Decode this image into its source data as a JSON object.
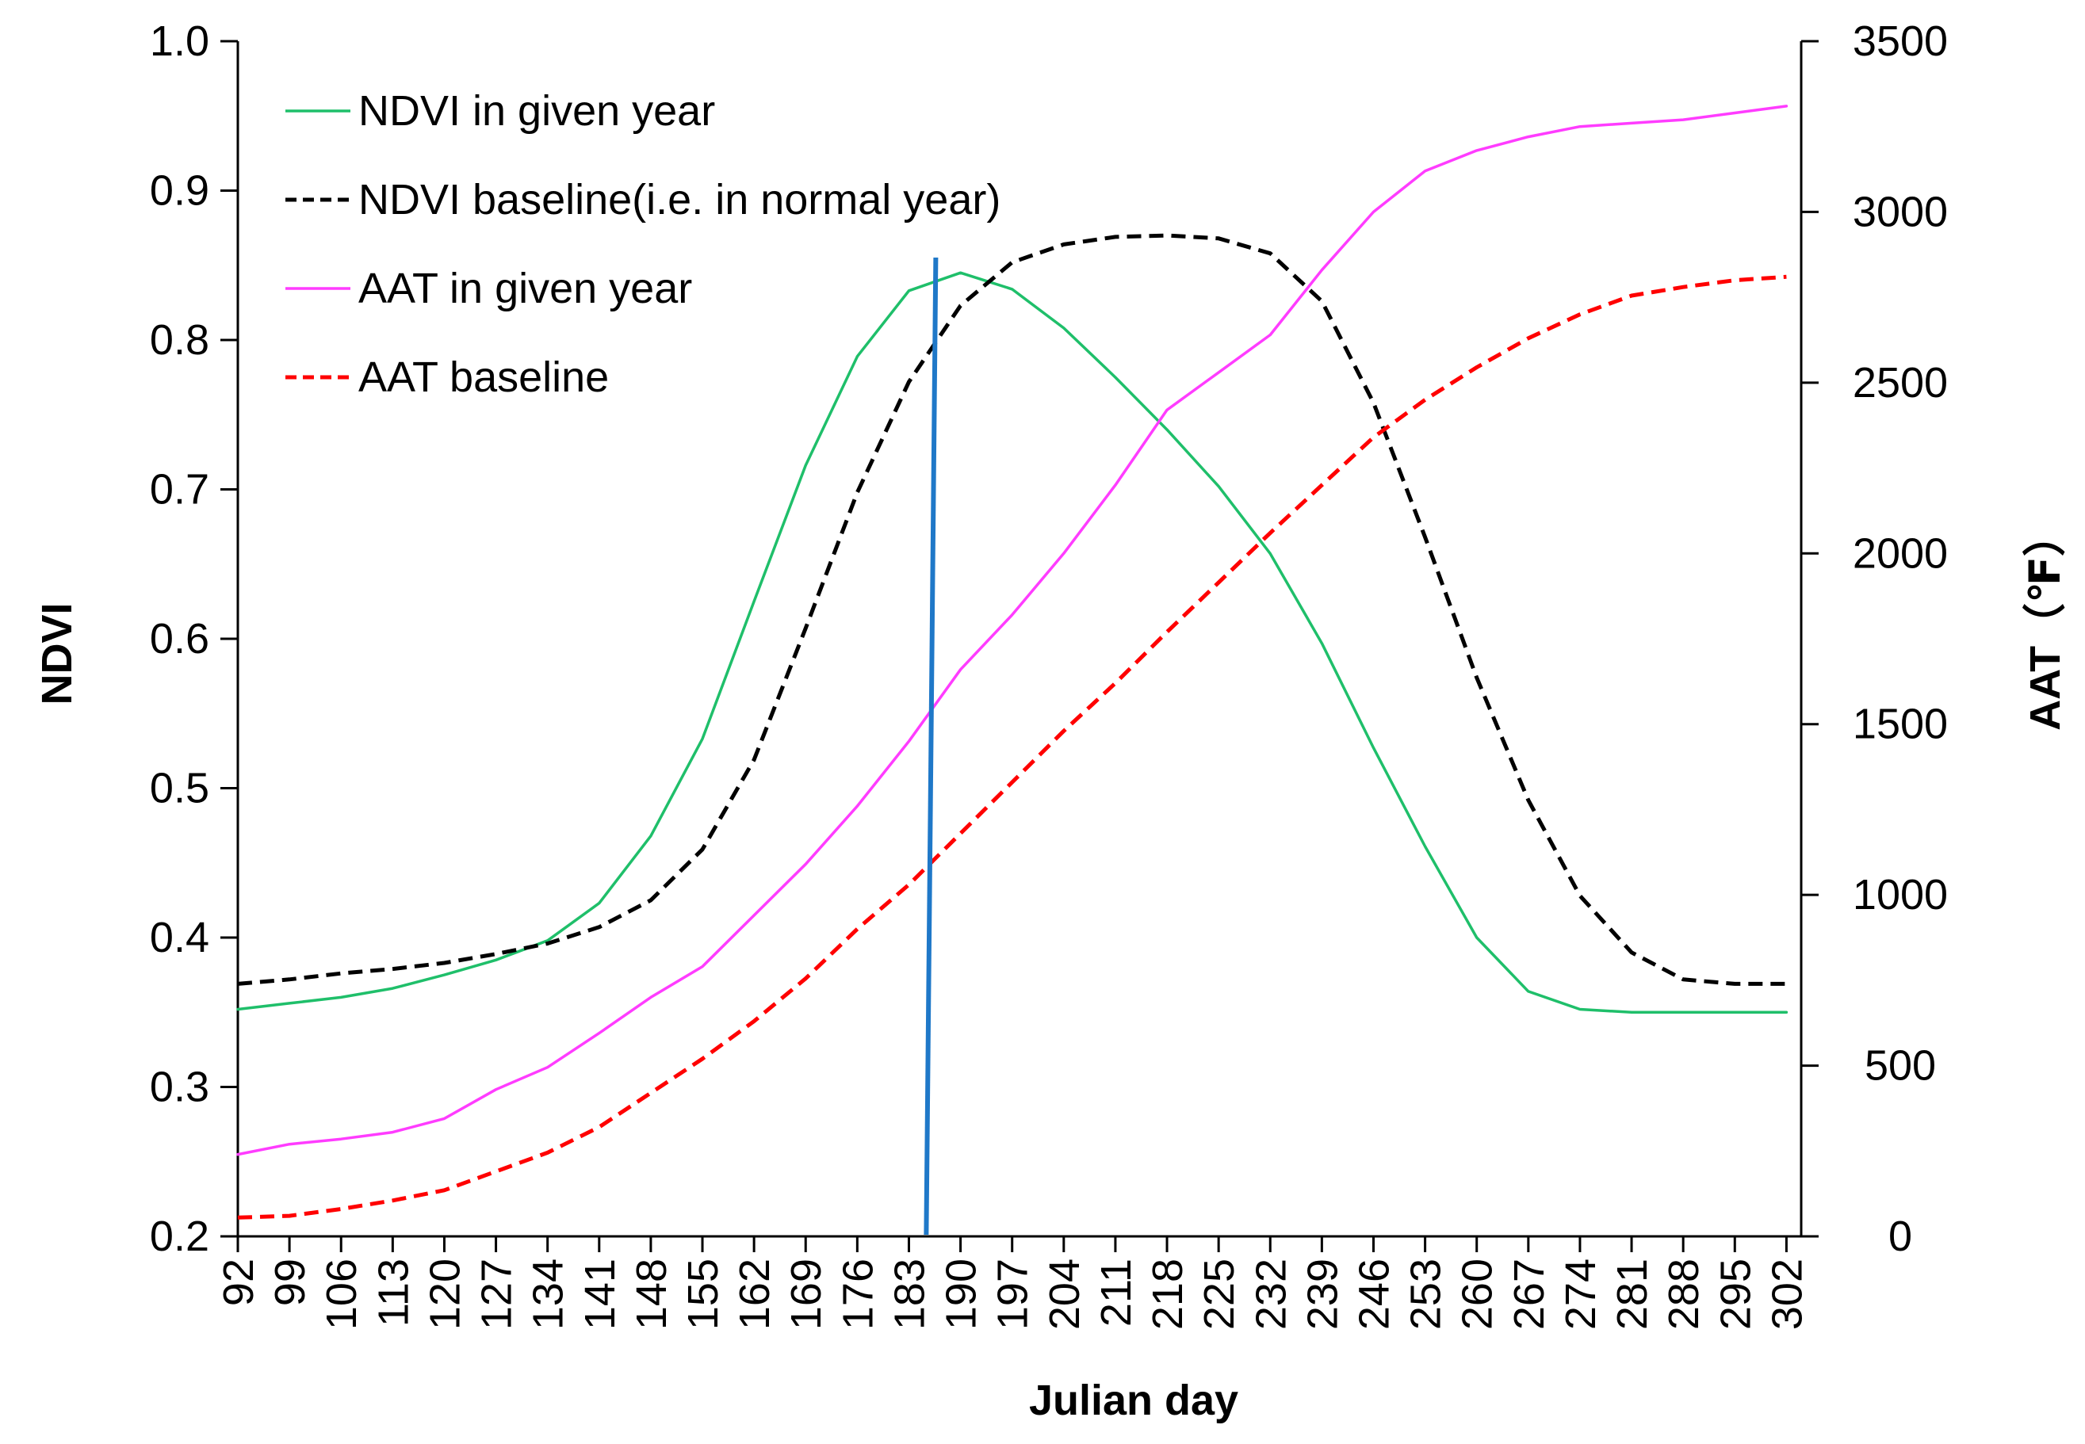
{
  "chart_data": {
    "type": "line",
    "xlabel": "Julian day",
    "ylabel": "NDVI",
    "y2label": "AAT（℉）",
    "xlim": [
      92,
      304
    ],
    "ylim": [
      0.2,
      1.0
    ],
    "y2lim": [
      0,
      3500
    ],
    "x_ticks": [
      "92",
      "99",
      "106",
      "113",
      "120",
      "127",
      "134",
      "141",
      "148",
      "155",
      "162",
      "169",
      "176",
      "183",
      "190",
      "197",
      "204",
      "211",
      "218",
      "225",
      "232",
      "239",
      "246",
      "253",
      "260",
      "267",
      "274",
      "281",
      "288",
      "295",
      "302"
    ],
    "y_ticks": [
      "0.2",
      "0.3",
      "0.4",
      "0.5",
      "0.6",
      "0.7",
      "0.8",
      "0.9",
      "1.0"
    ],
    "y2_ticks": [
      "0",
      "500",
      "1000",
      "1500",
      "2000",
      "2500",
      "3000",
      "3500"
    ],
    "marker_day": 186,
    "legend_position": "top-left",
    "series": [
      {
        "name": "NDVI in given year",
        "axis": "left",
        "color": "#1fbf6a",
        "style": "solid",
        "x": [
          92,
          99,
          106,
          113,
          120,
          127,
          134,
          141,
          148,
          155,
          162,
          169,
          176,
          183,
          190,
          197,
          204,
          211,
          218,
          225,
          232,
          239,
          246,
          253,
          260,
          267,
          274,
          281,
          288,
          295,
          302
        ],
        "y": [
          0.352,
          0.356,
          0.36,
          0.366,
          0.375,
          0.385,
          0.398,
          0.423,
          0.468,
          0.533,
          0.625,
          0.716,
          0.789,
          0.833,
          0.845,
          0.834,
          0.808,
          0.775,
          0.74,
          0.702,
          0.657,
          0.597,
          0.527,
          0.461,
          0.4,
          0.364,
          0.352,
          0.35,
          0.35,
          0.35,
          0.35
        ]
      },
      {
        "name": "NDVI baseline(i.e. in normal year)",
        "axis": "left",
        "color": "#000000",
        "style": "dashed",
        "x": [
          92,
          99,
          106,
          113,
          120,
          127,
          134,
          141,
          148,
          155,
          162,
          169,
          176,
          183,
          190,
          197,
          204,
          211,
          218,
          225,
          232,
          239,
          246,
          253,
          260,
          267,
          274,
          281,
          288,
          295,
          302
        ],
        "y": [
          0.369,
          0.372,
          0.376,
          0.379,
          0.383,
          0.389,
          0.396,
          0.407,
          0.425,
          0.459,
          0.519,
          0.607,
          0.698,
          0.772,
          0.823,
          0.852,
          0.864,
          0.869,
          0.87,
          0.868,
          0.858,
          0.826,
          0.758,
          0.668,
          0.574,
          0.492,
          0.428,
          0.39,
          0.372,
          0.369,
          0.369
        ]
      },
      {
        "name": "AAT in given year",
        "axis": "right",
        "color": "#ff3cff",
        "style": "solid",
        "x": [
          92,
          99,
          106,
          113,
          120,
          127,
          134,
          141,
          148,
          155,
          162,
          169,
          176,
          183,
          190,
          197,
          204,
          211,
          218,
          225,
          232,
          239,
          246,
          253,
          260,
          267,
          274,
          281,
          288,
          295,
          302
        ],
        "y": [
          240,
          270,
          285,
          305,
          345,
          430,
          495,
          595,
          700,
          790,
          940,
          1090,
          1260,
          1450,
          1660,
          1820,
          2000,
          2200,
          2420,
          2530,
          2640,
          2830,
          3000,
          3120,
          3180,
          3220,
          3250,
          3260,
          3270,
          3290,
          3310
        ]
      },
      {
        "name": "AAT baseline",
        "axis": "right",
        "color": "#ff0000",
        "style": "dashed",
        "x": [
          92,
          99,
          106,
          113,
          120,
          127,
          134,
          141,
          148,
          155,
          162,
          169,
          176,
          183,
          190,
          197,
          204,
          211,
          218,
          225,
          232,
          239,
          246,
          253,
          260,
          267,
          274,
          281,
          288,
          295,
          302
        ],
        "y": [
          55,
          60,
          80,
          105,
          135,
          190,
          245,
          320,
          420,
          520,
          630,
          755,
          900,
          1030,
          1180,
          1330,
          1480,
          1620,
          1770,
          1915,
          2060,
          2200,
          2340,
          2450,
          2545,
          2630,
          2700,
          2755,
          2780,
          2800,
          2810
        ]
      }
    ]
  }
}
